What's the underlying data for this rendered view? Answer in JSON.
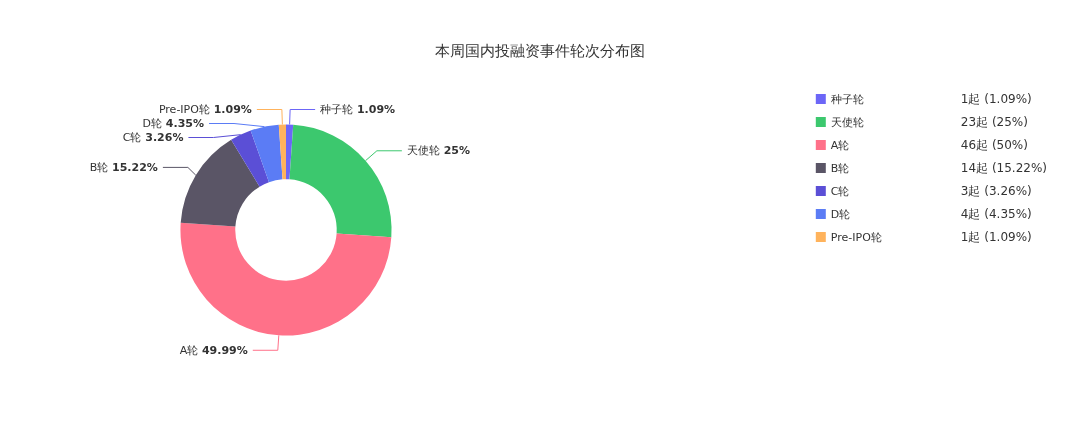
{
  "chart_data": {
    "type": "donut",
    "title": "本周国内投融资事件轮次分布图",
    "categories": [
      "种子轮",
      "天使轮",
      "A轮",
      "B轮",
      "C轮",
      "D轮",
      "Pre-IPO轮"
    ],
    "values": [
      1.09,
      25,
      49.99,
      15.22,
      3.26,
      4.35,
      1.09
    ],
    "colors": [
      "#6c66f7",
      "#3cc86e",
      "#ff7189",
      "#5a5566",
      "#5b4fd6",
      "#5b7cf5",
      "#ffb35c"
    ],
    "value_labels": [
      "1.09%",
      "25%",
      "49.99%",
      "15.22%",
      "3.26%",
      "4.35%",
      "1.09%"
    ],
    "annotations": [
      "1起 (1.09%)",
      "23起 (25%)",
      "46起 (50%)",
      "14起 (15.22%)",
      "3起 (3.26%)",
      "4起 (4.35%)",
      "1起 (1.09%)"
    ],
    "legend": "top right"
  }
}
